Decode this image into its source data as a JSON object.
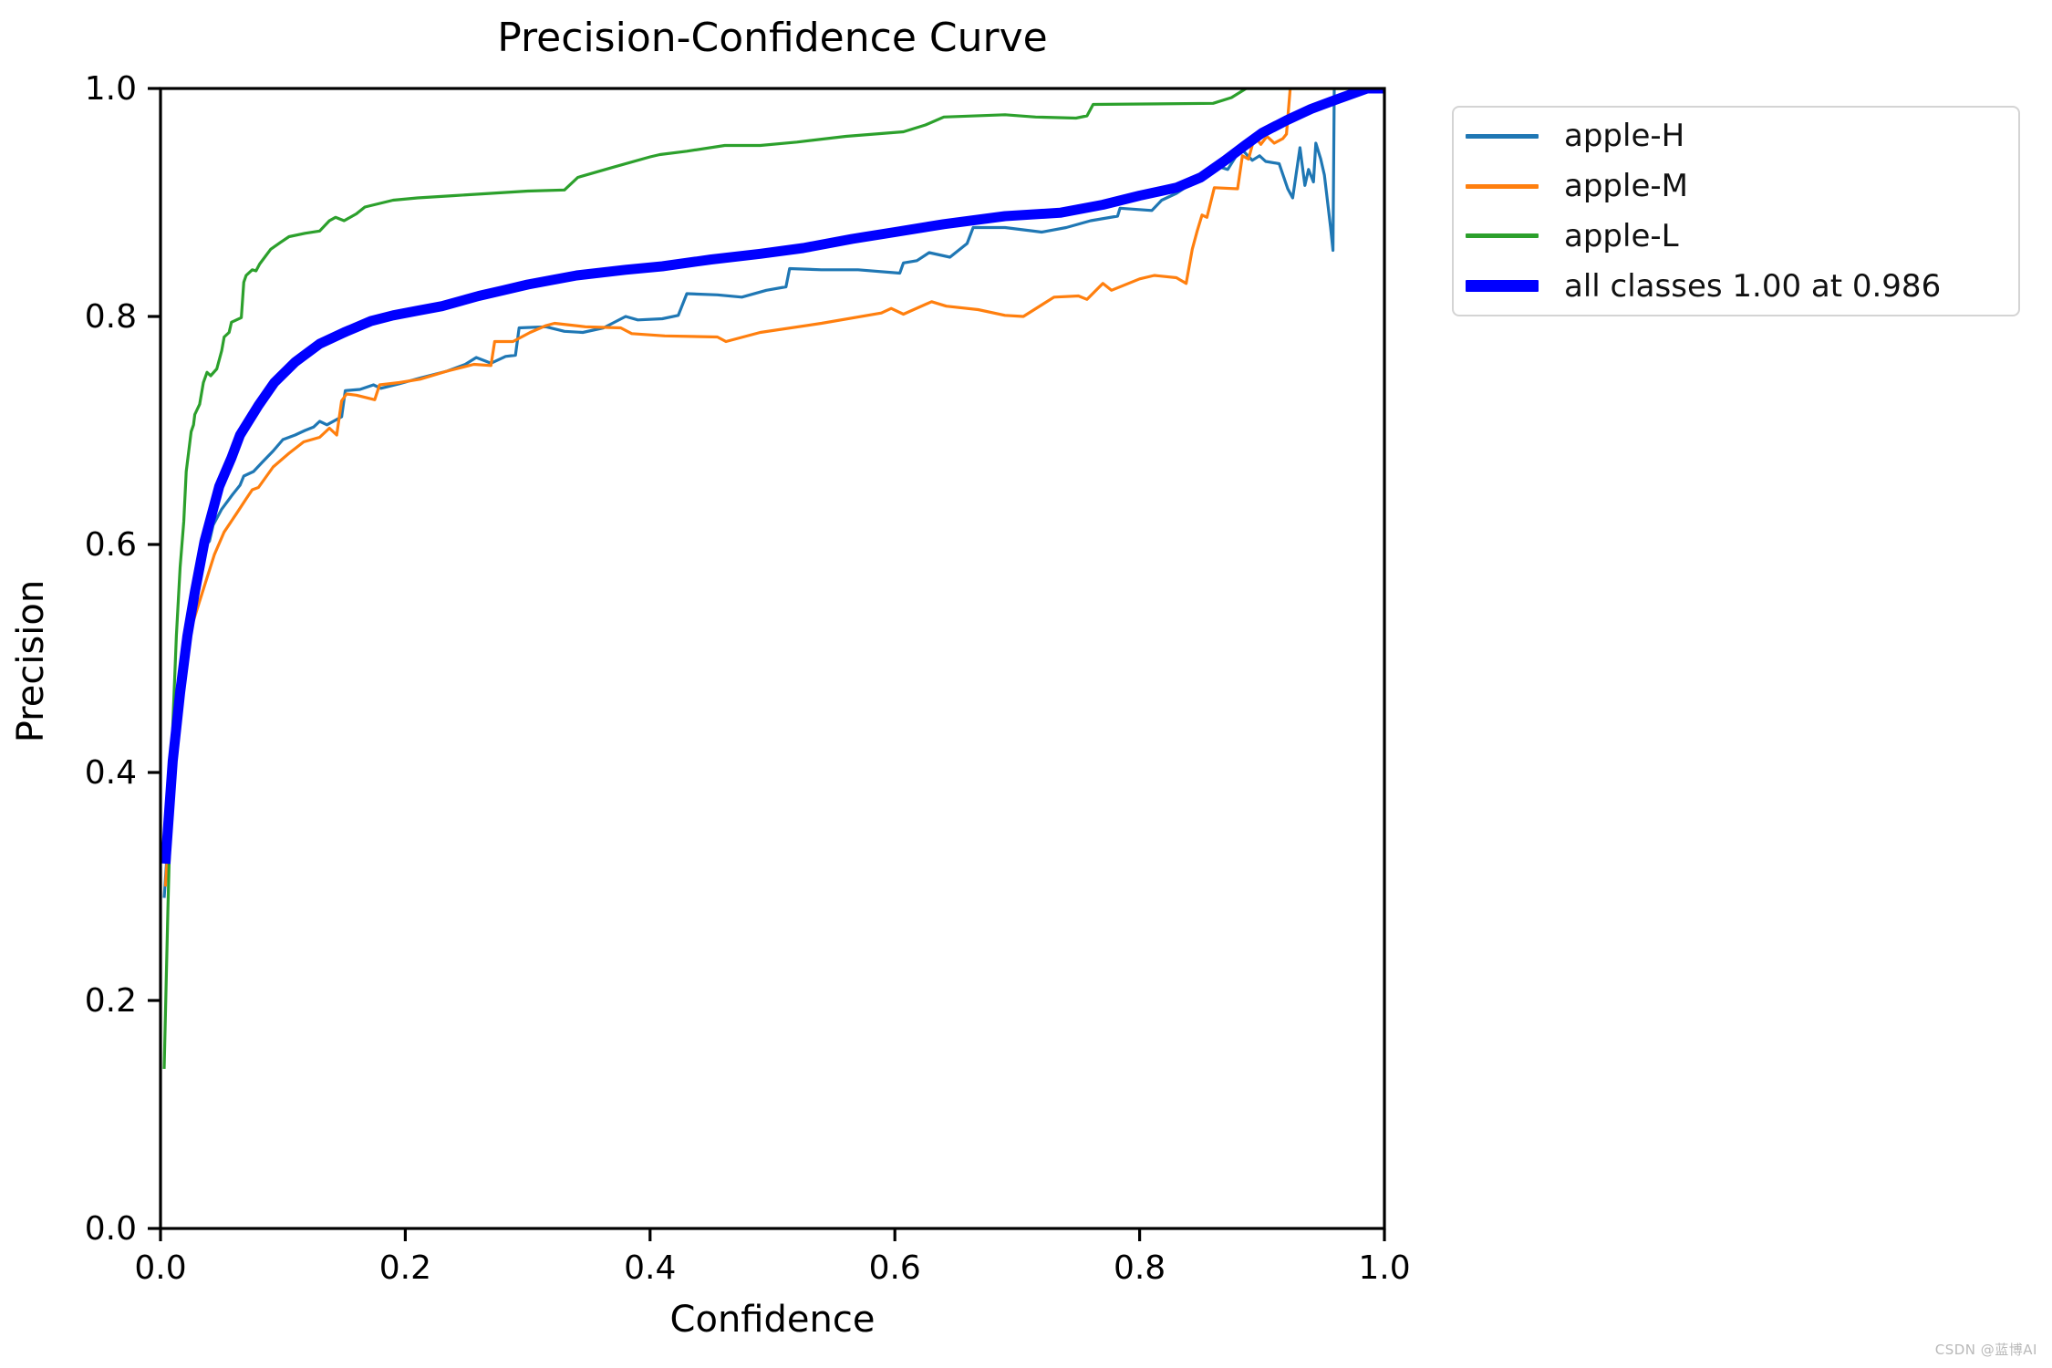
{
  "watermark": "CSDN @蓝博AI",
  "chart_data": {
    "type": "line",
    "title": "Precision-Confidence Curve",
    "xlabel": "Confidence",
    "ylabel": "Precision",
    "xlim": [
      0.0,
      1.0
    ],
    "ylim": [
      0.0,
      1.0
    ],
    "xticks": [
      "0.0",
      "0.2",
      "0.4",
      "0.6",
      "0.8",
      "1.0"
    ],
    "yticks": [
      "0.0",
      "0.2",
      "0.4",
      "0.6",
      "0.8",
      "1.0"
    ],
    "grid": false,
    "legend_position": "outside-upper-right",
    "axis_color": "#000000",
    "series": [
      {
        "name": "apple-H",
        "color": "#1f77b4",
        "width": 3.2,
        "thick": false,
        "points": [
          [
            0.003,
            0.29
          ],
          [
            0.008,
            0.37
          ],
          [
            0.015,
            0.46
          ],
          [
            0.022,
            0.52
          ],
          [
            0.028,
            0.556
          ],
          [
            0.032,
            0.582
          ],
          [
            0.036,
            0.598
          ],
          [
            0.04,
            0.603
          ],
          [
            0.043,
            0.617
          ],
          [
            0.05,
            0.631
          ],
          [
            0.059,
            0.644
          ],
          [
            0.065,
            0.652
          ],
          [
            0.068,
            0.66
          ],
          [
            0.076,
            0.664
          ],
          [
            0.083,
            0.672
          ],
          [
            0.092,
            0.682
          ],
          [
            0.1,
            0.692
          ],
          [
            0.11,
            0.696
          ],
          [
            0.118,
            0.7
          ],
          [
            0.125,
            0.703
          ],
          [
            0.13,
            0.708
          ],
          [
            0.136,
            0.705
          ],
          [
            0.148,
            0.712
          ],
          [
            0.151,
            0.735
          ],
          [
            0.163,
            0.736
          ],
          [
            0.174,
            0.74
          ],
          [
            0.18,
            0.737
          ],
          [
            0.195,
            0.741
          ],
          [
            0.212,
            0.746
          ],
          [
            0.234,
            0.752
          ],
          [
            0.249,
            0.758
          ],
          [
            0.258,
            0.764
          ],
          [
            0.27,
            0.759
          ],
          [
            0.282,
            0.765
          ],
          [
            0.29,
            0.766
          ],
          [
            0.293,
            0.79
          ],
          [
            0.315,
            0.791
          ],
          [
            0.33,
            0.787
          ],
          [
            0.345,
            0.786
          ],
          [
            0.362,
            0.79
          ],
          [
            0.38,
            0.8
          ],
          [
            0.39,
            0.797
          ],
          [
            0.41,
            0.798
          ],
          [
            0.423,
            0.801
          ],
          [
            0.43,
            0.82
          ],
          [
            0.455,
            0.819
          ],
          [
            0.475,
            0.817
          ],
          [
            0.495,
            0.823
          ],
          [
            0.511,
            0.826
          ],
          [
            0.514,
            0.842
          ],
          [
            0.54,
            0.841
          ],
          [
            0.57,
            0.841
          ],
          [
            0.604,
            0.838
          ],
          [
            0.607,
            0.847
          ],
          [
            0.618,
            0.849
          ],
          [
            0.628,
            0.856
          ],
          [
            0.645,
            0.852
          ],
          [
            0.659,
            0.864
          ],
          [
            0.664,
            0.878
          ],
          [
            0.69,
            0.878
          ],
          [
            0.705,
            0.876
          ],
          [
            0.72,
            0.874
          ],
          [
            0.74,
            0.878
          ],
          [
            0.76,
            0.884
          ],
          [
            0.782,
            0.888
          ],
          [
            0.784,
            0.895
          ],
          [
            0.81,
            0.893
          ],
          [
            0.818,
            0.902
          ],
          [
            0.83,
            0.908
          ],
          [
            0.84,
            0.915
          ],
          [
            0.852,
            0.921
          ],
          [
            0.862,
            0.928
          ],
          [
            0.866,
            0.931
          ],
          [
            0.872,
            0.929
          ],
          [
            0.879,
            0.941
          ],
          [
            0.884,
            0.946
          ],
          [
            0.892,
            0.937
          ],
          [
            0.898,
            0.941
          ],
          [
            0.903,
            0.936
          ],
          [
            0.914,
            0.934
          ],
          [
            0.921,
            0.912
          ],
          [
            0.925,
            0.904
          ],
          [
            0.931,
            0.948
          ],
          [
            0.935,
            0.915
          ],
          [
            0.938,
            0.929
          ],
          [
            0.942,
            0.918
          ],
          [
            0.944,
            0.952
          ],
          [
            0.948,
            0.938
          ],
          [
            0.951,
            0.924
          ],
          [
            0.956,
            0.878
          ],
          [
            0.958,
            0.858
          ],
          [
            0.959,
            1.0
          ],
          [
            1.0,
            1.0
          ]
        ]
      },
      {
        "name": "apple-M",
        "color": "#ff7f0e",
        "width": 3.2,
        "thick": false,
        "points": [
          [
            0.004,
            0.3
          ],
          [
            0.01,
            0.4
          ],
          [
            0.018,
            0.47
          ],
          [
            0.026,
            0.53
          ],
          [
            0.036,
            0.564
          ],
          [
            0.044,
            0.591
          ],
          [
            0.052,
            0.611
          ],
          [
            0.062,
            0.627
          ],
          [
            0.07,
            0.64
          ],
          [
            0.075,
            0.648
          ],
          [
            0.08,
            0.65
          ],
          [
            0.092,
            0.668
          ],
          [
            0.105,
            0.68
          ],
          [
            0.117,
            0.69
          ],
          [
            0.13,
            0.694
          ],
          [
            0.138,
            0.702
          ],
          [
            0.144,
            0.696
          ],
          [
            0.148,
            0.726
          ],
          [
            0.152,
            0.732
          ],
          [
            0.16,
            0.731
          ],
          [
            0.175,
            0.727
          ],
          [
            0.179,
            0.74
          ],
          [
            0.195,
            0.742
          ],
          [
            0.212,
            0.745
          ],
          [
            0.234,
            0.752
          ],
          [
            0.256,
            0.758
          ],
          [
            0.27,
            0.757
          ],
          [
            0.273,
            0.778
          ],
          [
            0.288,
            0.778
          ],
          [
            0.302,
            0.786
          ],
          [
            0.315,
            0.792
          ],
          [
            0.322,
            0.794
          ],
          [
            0.347,
            0.791
          ],
          [
            0.376,
            0.79
          ],
          [
            0.385,
            0.785
          ],
          [
            0.412,
            0.783
          ],
          [
            0.455,
            0.782
          ],
          [
            0.462,
            0.778
          ],
          [
            0.49,
            0.786
          ],
          [
            0.54,
            0.794
          ],
          [
            0.589,
            0.803
          ],
          [
            0.597,
            0.807
          ],
          [
            0.607,
            0.802
          ],
          [
            0.63,
            0.813
          ],
          [
            0.642,
            0.809
          ],
          [
            0.668,
            0.806
          ],
          [
            0.69,
            0.801
          ],
          [
            0.705,
            0.8
          ],
          [
            0.73,
            0.817
          ],
          [
            0.75,
            0.818
          ],
          [
            0.757,
            0.815
          ],
          [
            0.77,
            0.829
          ],
          [
            0.777,
            0.823
          ],
          [
            0.8,
            0.833
          ],
          [
            0.812,
            0.836
          ],
          [
            0.83,
            0.834
          ],
          [
            0.838,
            0.829
          ],
          [
            0.843,
            0.859
          ],
          [
            0.847,
            0.875
          ],
          [
            0.851,
            0.889
          ],
          [
            0.855,
            0.887
          ],
          [
            0.861,
            0.913
          ],
          [
            0.88,
            0.912
          ],
          [
            0.884,
            0.941
          ],
          [
            0.889,
            0.938
          ],
          [
            0.894,
            0.958
          ],
          [
            0.899,
            0.951
          ],
          [
            0.904,
            0.958
          ],
          [
            0.91,
            0.952
          ],
          [
            0.917,
            0.956
          ],
          [
            0.92,
            0.96
          ],
          [
            0.923,
            1.0
          ],
          [
            1.0,
            1.0
          ]
        ]
      },
      {
        "name": "apple-L",
        "color": "#2ca02c",
        "width": 3.2,
        "thick": false,
        "points": [
          [
            0.003,
            0.14
          ],
          [
            0.006,
            0.28
          ],
          [
            0.01,
            0.44
          ],
          [
            0.013,
            0.52
          ],
          [
            0.016,
            0.58
          ],
          [
            0.019,
            0.62
          ],
          [
            0.021,
            0.664
          ],
          [
            0.025,
            0.699
          ],
          [
            0.027,
            0.705
          ],
          [
            0.028,
            0.714
          ],
          [
            0.032,
            0.723
          ],
          [
            0.035,
            0.742
          ],
          [
            0.038,
            0.751
          ],
          [
            0.041,
            0.748
          ],
          [
            0.046,
            0.754
          ],
          [
            0.05,
            0.77
          ],
          [
            0.052,
            0.782
          ],
          [
            0.056,
            0.786
          ],
          [
            0.058,
            0.795
          ],
          [
            0.066,
            0.799
          ],
          [
            0.068,
            0.83
          ],
          [
            0.07,
            0.836
          ],
          [
            0.075,
            0.841
          ],
          [
            0.078,
            0.84
          ],
          [
            0.081,
            0.846
          ],
          [
            0.09,
            0.859
          ],
          [
            0.098,
            0.865
          ],
          [
            0.105,
            0.87
          ],
          [
            0.118,
            0.873
          ],
          [
            0.13,
            0.875
          ],
          [
            0.138,
            0.884
          ],
          [
            0.143,
            0.887
          ],
          [
            0.15,
            0.884
          ],
          [
            0.16,
            0.89
          ],
          [
            0.167,
            0.896
          ],
          [
            0.19,
            0.902
          ],
          [
            0.21,
            0.904
          ],
          [
            0.24,
            0.906
          ],
          [
            0.27,
            0.908
          ],
          [
            0.3,
            0.91
          ],
          [
            0.33,
            0.911
          ],
          [
            0.341,
            0.922
          ],
          [
            0.37,
            0.931
          ],
          [
            0.4,
            0.94
          ],
          [
            0.408,
            0.942
          ],
          [
            0.43,
            0.945
          ],
          [
            0.461,
            0.95
          ],
          [
            0.49,
            0.95
          ],
          [
            0.52,
            0.953
          ],
          [
            0.56,
            0.958
          ],
          [
            0.607,
            0.962
          ],
          [
            0.625,
            0.968
          ],
          [
            0.64,
            0.975
          ],
          [
            0.69,
            0.977
          ],
          [
            0.715,
            0.975
          ],
          [
            0.748,
            0.974
          ],
          [
            0.757,
            0.976
          ],
          [
            0.762,
            0.986
          ],
          [
            0.86,
            0.987
          ],
          [
            0.875,
            0.992
          ],
          [
            0.887,
            1.0
          ],
          [
            1.0,
            1.0
          ]
        ]
      },
      {
        "name": "all classes 1.00 at 0.986",
        "color": "#0000ff",
        "width": 11,
        "thick": true,
        "points": [
          [
            0.004,
            0.32
          ],
          [
            0.01,
            0.41
          ],
          [
            0.016,
            0.47
          ],
          [
            0.022,
            0.52
          ],
          [
            0.028,
            0.558
          ],
          [
            0.036,
            0.603
          ],
          [
            0.048,
            0.651
          ],
          [
            0.058,
            0.676
          ],
          [
            0.065,
            0.696
          ],
          [
            0.08,
            0.722
          ],
          [
            0.093,
            0.742
          ],
          [
            0.11,
            0.76
          ],
          [
            0.13,
            0.776
          ],
          [
            0.15,
            0.786
          ],
          [
            0.172,
            0.796
          ],
          [
            0.19,
            0.801
          ],
          [
            0.21,
            0.805
          ],
          [
            0.23,
            0.809
          ],
          [
            0.26,
            0.818
          ],
          [
            0.28,
            0.823
          ],
          [
            0.3,
            0.828
          ],
          [
            0.32,
            0.832
          ],
          [
            0.34,
            0.836
          ],
          [
            0.38,
            0.841
          ],
          [
            0.41,
            0.844
          ],
          [
            0.45,
            0.85
          ],
          [
            0.49,
            0.855
          ],
          [
            0.525,
            0.86
          ],
          [
            0.565,
            0.868
          ],
          [
            0.6,
            0.874
          ],
          [
            0.64,
            0.881
          ],
          [
            0.69,
            0.888
          ],
          [
            0.735,
            0.891
          ],
          [
            0.77,
            0.898
          ],
          [
            0.8,
            0.906
          ],
          [
            0.83,
            0.913
          ],
          [
            0.85,
            0.922
          ],
          [
            0.87,
            0.937
          ],
          [
            0.886,
            0.95
          ],
          [
            0.9,
            0.961
          ],
          [
            0.92,
            0.972
          ],
          [
            0.94,
            0.982
          ],
          [
            0.96,
            0.99
          ],
          [
            0.986,
            1.0
          ],
          [
            1.0,
            1.0
          ]
        ]
      }
    ]
  }
}
